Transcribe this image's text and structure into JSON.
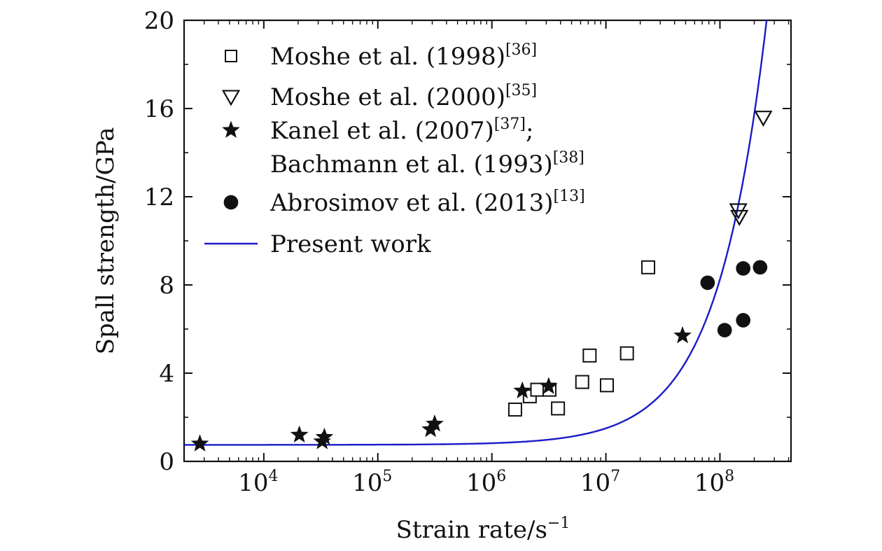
{
  "chart_data": {
    "type": "scatter",
    "xlabel": "Strain rate/s",
    "xlabel_sup": "−1",
    "ylabel": "Spall strength/GPa",
    "x_scale": "log",
    "xlim": [
      2000,
      420000000
    ],
    "ylim": [
      0,
      20
    ],
    "y_ticks": [
      0,
      4,
      8,
      12,
      16,
      20
    ],
    "x_ticks": [
      {
        "value": 10000,
        "base": "10",
        "exp": "4"
      },
      {
        "value": 100000,
        "base": "10",
        "exp": "5"
      },
      {
        "value": 1000000,
        "base": "10",
        "exp": "6"
      },
      {
        "value": 10000000,
        "base": "10",
        "exp": "7"
      },
      {
        "value": 100000000,
        "base": "10",
        "exp": "8"
      }
    ],
    "grid": false,
    "legend_position": "top-left",
    "series": [
      {
        "name": "Moshe et al. (1998)",
        "ref": "[36]",
        "marker": "square-open",
        "points": [
          [
            1600000,
            2.35
          ],
          [
            2150000,
            2.95
          ],
          [
            2500000,
            3.25
          ],
          [
            3200000,
            3.25
          ],
          [
            3800000,
            2.4
          ],
          [
            6200000,
            3.6
          ],
          [
            7200000,
            4.8
          ],
          [
            10200000,
            3.45
          ],
          [
            15300000,
            4.9
          ],
          [
            23500000,
            8.8
          ]
        ]
      },
      {
        "name": "Moshe et al. (2000)",
        "ref": "[35]",
        "marker": "triangle-down-open",
        "points": [
          [
            145000000,
            11.4
          ],
          [
            148000000,
            11.1
          ],
          [
            240000000,
            15.6
          ]
        ]
      },
      {
        "name": "Kanel et al. (2007)",
        "ref": "[37]",
        "name_suffix": ";",
        "name2": "Bachmann et al. (1993)",
        "ref2": "[38]",
        "marker": "star-filled",
        "points": [
          [
            2750,
            0.8
          ],
          [
            20500,
            1.2
          ],
          [
            32500,
            0.9
          ],
          [
            34000,
            1.1
          ],
          [
            290000,
            1.45
          ],
          [
            315000,
            1.7
          ],
          [
            1850000,
            3.2
          ],
          [
            3150000,
            3.4
          ],
          [
            47000000,
            5.7
          ]
        ]
      },
      {
        "name": "Abrosimov et al. (2013)",
        "ref": "[13]",
        "marker": "circle-filled",
        "points": [
          [
            78000000,
            8.1
          ],
          [
            110000000,
            5.95
          ],
          [
            160000000,
            6.4
          ],
          [
            160000000,
            8.75
          ],
          [
            225000000,
            8.8
          ]
        ]
      },
      {
        "name": "Present work",
        "marker": "line",
        "color": "#1a1ac8",
        "curve": {
          "a": 0.75,
          "b": 7.5e-08
        }
      }
    ]
  }
}
